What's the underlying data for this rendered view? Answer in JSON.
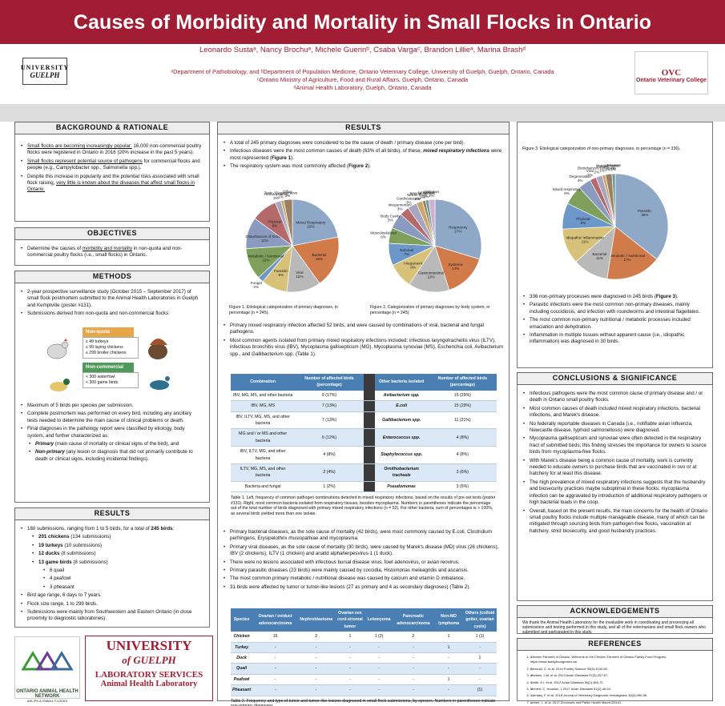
{
  "header": {
    "title": "Causes of Morbidity and Mortality in Small Flocks in Ontario",
    "authors": "Leonardo Sustaᵃ, Nancy Brochuᵃ, Michele Guerinᵇ, Csaba Vargaᶜ, Brandon Lillieᵃ, Marina Brashᵈ",
    "aff1": "ᵃDepartment of Pathobiology, and ᵇDepartment of Population Medicine, Ontario Veterinary College, University of Guelph, Guelph, Ontario, Canada",
    "aff2": "ᶜOntario Ministry of Agriculture, Food and Rural Affairs, Guelph, Ontario, Canada",
    "aff3": "ᵈAnimal Health Laboratory, Guelph, Ontario, Canada",
    "logo_left_1": "UNIVERSITY",
    "logo_left_2": "GUELPH",
    "logo_right_1": "OVC",
    "logo_right_2": "Ontario Veterinary College",
    "brand_color": "#a11d33"
  },
  "background": {
    "heading": "BACKGROUND & RATIONALE",
    "b1a": "Small flocks are becoming increasingly popular:",
    "b1b": " 16,000 non-commercial poultry flocks were registered in Ontario in 2016 (20% increase in the past 5 years).",
    "b2a": "Small flocks represent potential source of pathogens",
    "b2b": " for commercial flocks and people (e.g., Campylobacter spp., Salmonella spp.).",
    "b3a": "Despite this increase in popularity and the potential risks associated with small flock raising, ",
    "b3b": "very little is known about the diseases that affect small flocks in  Ontario."
  },
  "objectives": {
    "heading": "OBJECTIVES",
    "b1a": "Determine the causes of ",
    "b1b": "morbidity and mortality",
    "b1c": " in non-quota and non-commercial poultry flocks (i.e., small flocks)  in Ontario."
  },
  "methods": {
    "heading": "METHODS",
    "b1": "2-year prospective surveillance study (October 2015 – September 2017) of small flock postmortem submitted to the Animal Health Laboratories in Guelph and Kemptville (poster #131).",
    "b2": "Submissions derived from non-quota and non-commercial flocks:",
    "nonquota": "Non-quota",
    "nq1": "≤ 49 turkeys",
    "nq2": "≤ 99 laying chickens",
    "nq3": "≤ 299 broiler chickens",
    "noncomm": "Non-commercial",
    "nc1": "< 300 waterfowl",
    "nc2": "< 300 game birds",
    "b3": "Maximum of 5 birds per species per submission.",
    "b4": "Complete postmortem was performed on every bird, including any ancillary tests needed to determine the main cause of clinical problems or death.",
    "b5": "Final diagnoses in the pathology report were classified by etiology, body system, and further characterized as:",
    "s1a": "Primary",
    "s1b": " (main cause of mortality or clinical signs of the bird), and",
    "s2a": "Non-primary",
    "s2b": " (any lesion or diagnosis that did not primarily contribute to death or clinical signs, including incidental findings)."
  },
  "results_left": {
    "heading": "RESULTS",
    "b1a": "160 submissions, ranging from 1 to 5 birds, for a total of ",
    "b1b": "245 birds",
    "b1c": ":",
    "s1a": "201 chickens",
    "s1b": " (134 submissions)",
    "s2a": "19 turkeys",
    "s2b": " (10 submissions)",
    "s3a": "12 ducks",
    "s3b": " (8 submissions)",
    "s4a": "13 game birds",
    "s4b": " (8 submissions)",
    "t1": "6 quail",
    "t2": "4 peafowl",
    "t3": "3 pheasant",
    "b2": "Bird age range, 6 days to 7 years.",
    "b3": "Flock size range, 1 to 299 birds.",
    "b4": "Submissions were mainly from Southwestern and Eastern Ontario (in close proximity to diagnostic laboratories)."
  },
  "footer": {
    "oahn": "ONTARIO ANIMAL HEALTH NETWORK",
    "ug1": "UNIVERSITY",
    "ug2": "of GUELPH",
    "ug3": "LABORATORY SERVICES",
    "ug4": "Animal Health Laboratory",
    "poster_no": "AHL/PS.A./SMALL FLOCKS"
  },
  "results_mid": {
    "heading": "RESULTS",
    "b1": "A total of 245 primary diagnoses were considered to be the cause of death / primary disease (one per bird).",
    "b2a": "Infectious diseases were the most common causes of death (63% of all birds), of these, ",
    "b2b": "mixed respiratory infections",
    "b2c": " were most represented (",
    "b2d": "Figure 1",
    "b2e": ").",
    "b3a": "The respiratory system was most commonly affected (",
    "b3b": "Figure 2",
    "b3c": ").",
    "fig1": "Figure 1. Etiological categorization of primary diagnoses, in percentage (n = 245).",
    "fig2": "Figure 2. Categorization of primary diagnoses by body system, in percentage (n = 245).",
    "b4": "Primary mixed respiratory infection affected 52 birds, and were caused by combinations of viral, bacterial and fungal pathogens.",
    "b5": "Most common agents isolated from primary mixed respiratory infections included: infectious laryngotracheitis virus (ILTV), infectious bronchitis virus (IBV), Mycoplasma gallisepticum (MG), Mycoplasma synoviae (MS), Escherichia coli, Avibacterium spp., and Gallibacterium spp. (Table 1).",
    "table1": {
      "h1": "Combination",
      "h2": "Number of affected birds (percentage)",
      "h3": "Other bacteria isolated",
      "h4": "Number of affected birds (percentage)",
      "rows": [
        [
          "IBV, MG, MS, and other bacteria",
          "9 (17%)",
          "Avibacterium spp.",
          "15 (29%)"
        ],
        [
          "IBV, MG, MS",
          "7 (13%)",
          "E.coli",
          "15 (29%)"
        ],
        [
          "IBV, ILTV, MG, MS, and other bacteria",
          "7 (13%)",
          "Gallibacterium spp.",
          "11 (21%)"
        ],
        [
          "MG and / or MS and other bacteria",
          "6 (12%)",
          "Enterococcus spp.",
          "4 (8%)"
        ],
        [
          "IBV, ILTV, MG, and other bacteria",
          "4 (8%)",
          "Staphylococcus spp.",
          "4 (8%)"
        ],
        [
          "ILTV, MG, MS, and other bacteria",
          "2 (4%)",
          "Ornithobacterium tracheale",
          "3 (6%)"
        ],
        [
          "Bacteria and fungal",
          "1 (2%)",
          "Pseudomonas",
          "3 (6%)"
        ]
      ],
      "caption": "Table 1. Left, frequency of common pathogen combinations detected in mixed respiratory infections, based on the results of pre-set tests (poster #131). Right, most common bacteria isolated from respiratory tissues, besides mycoplasma. Numbers in parentheses indicate the percentage out of the total number of birds diagnosed with primary mixed respiratory infections (n = 52). For other bacteria, sum of percentages is > 100%, as several birds yielded more than one isolate."
    },
    "b6": "Primary bacterial diseases, as the sole cause of mortality (42 birds), were most commonly caused by E.coli, Clostridium perfringens,  Erysipelothrix rhusiopathiae and mycoplasma.",
    "b7": "Primary viral diseases, as the sole cause of mortality (30 birds), were caused by Marek's disease (MD) virus (26 chickens),  IBV (2 chickens), ILTV (1 chicken) and anatid alphaherpesvirus-1 (1 duck).",
    "b8": "There were no lesions associated with infectious bursal disease virus, fowl adenovirus, or avian reovirus.",
    "b9": "Primary parasitic diseases (23 birds) were mainly caused by coccidia, Histomonas meleagridis and ascarisis.",
    "b10": "The most common primary metabolic / nutritional disease was caused by calcium and vitamin D imbalance.",
    "b11": "31 birds were affected by tumor or tumor-like lesions (27 as primary and 4 as secondary diagnoses) (Table 2).",
    "table2": {
      "headers": [
        "Species",
        "Ovarian / oviduct adenocarcinoma",
        "Nephroblastoma",
        "Ovarian sex cord-stromal tumor",
        "Leiomyoma",
        "Pancreatic adenocarcinoma",
        "Non-MD lymphoma",
        "Others (colloid goiter, ovarian cysts)"
      ],
      "rows": [
        [
          "Chicken",
          "16",
          "2",
          "1",
          "1 (2)",
          "2",
          "1",
          "1 (1)"
        ],
        [
          "Turkey",
          "-",
          "-",
          "-",
          "-",
          "-",
          "1",
          "-"
        ],
        [
          "Duck",
          "-",
          "-",
          "-",
          "-",
          "-",
          "-",
          "1"
        ],
        [
          "Quail",
          "-",
          "-",
          "-",
          "-",
          "-",
          "-",
          "-"
        ],
        [
          "Peafowl",
          "-",
          "-",
          "-",
          "-",
          "-",
          "1",
          "-"
        ],
        [
          "Pheasant",
          "-",
          "-",
          "-",
          "-",
          "-",
          "-",
          "(1)"
        ]
      ],
      "caption": "Table 2. Frequency and type of tumor and tumor-like lesions diagnosed in small flock submissions, by species. Numbers in parentheses indicate non-primary diagnoses."
    }
  },
  "results_right": {
    "fig3": "Figure 3. Etiological categorization of non-primary diagnoses, in percentage (n = 336).",
    "b1a": "336 non-primary processes were diagnosed in 245 birds (",
    "b1b": "Figure 3",
    "b1c": ").",
    "b2": "Parasitic infections were the most common non-primary diseases, mainly including coccidiosis, and infection with roundworms and intestinal flagellates.",
    "b3": "The most common non-primary nutritional / metabolic processes included emaciation and dehydration.",
    "b4": "Inflammation in multiple tissues without apparent cause (i.e., idiopathic inflammation) was diagnosed in 30 birds."
  },
  "conclusions": {
    "heading": "CONCLUSIONS & SIGNIFICANCE",
    "b1": "Infectious pathogens were the most common cause of primary disease and / or death in Ontario small poultry flocks.",
    "b2": "Most common causes of death included mixed respiratory infections, bacterial infections, and Marek's disease.",
    "b3": "No federally reportable diseases in Canada (i.e., notifiable avian influenza, Newcastle disease, typhoid salmonellosis) were diagnosed.",
    "b4": "Mycoplasma gallisepticum and synoviae were often detected in the respiratory tract of submitted birds; this finding stresses the importance for owners to source birds from mycoplasma-free flocks.",
    "b5": "With Marek's disease being a common cause of mortality, work is currently needed to educate owners to purchase birds that are vaccinated in ovo or at hatchery for at least this disease.",
    "b6": "The high prevalence of mixed respiratory infections suggests that the husbandry and biosecurity practices maybe suboptimal in these flocks: mycoplasma infection can be aggravated by introduction of additional respiratory pathogens or high bacterial loads in the coop.",
    "b7": "Overall, based on the present results, the main concerns for the health of Ontario small poultry flocks include multiple manageable disease, many of which can be mitigated through sourcing birds from pathogen-free flocks, vaccination at hatchery, strict biosecurity, and good husbandry practices."
  },
  "ack": {
    "heading": "ACKNOWLEDGEMENTS",
    "text": "We thank the Animal Health Laboratory for the invaluable work in coordinating and processing all submissions and testing performed in this study, and all of the veterinarians and small flock owners who submitted and participated in this study."
  },
  "refs": {
    "heading": "REFERENCES",
    "items": [
      "Chicken Farmers of Ontario, Welcome to the Chicken Farmers of Ontario Family Food Program, https://www.familyfoodgrower.ca/.",
      "Elbrouid, C. et al. 2014 Poultry Science 93(5):1043-55.",
      "Madsen, J.M. et al. 2013 Avian Diseases 57(2):257-67.",
      "Smith, E.I. et al. 2012 Avian Diseases 56(2):365-72.",
      "Mehlerl, C, Houston, L 2017 Avian Diseases 61(1):46-54.",
      "Carnaby, F. et al. 2018 Journal of Veterinary Diagnostic Investigation 30(4):490-96.",
      "Lebert, L. et al. 2017 Zoonoses and Public Health March:254-61.",
      "Madsen, J.M. et al. 2013 Avian Diseases 57(3):597-94."
    ]
  },
  "chart_data": [
    {
      "type": "pie",
      "title": "Figure 1",
      "categories": [
        "Mixed Respiratory",
        "Bacterial",
        "Viral",
        "Parasitic",
        "Fungal",
        "Metabolic / Nutritional",
        "Disturbances of Growth",
        "Physical",
        "Hemodynamic",
        "Toxic / Degenerative",
        "Other"
      ],
      "values": [
        22,
        18,
        12,
        9,
        2,
        11,
        11,
        9,
        2,
        1,
        3
      ],
      "colors": [
        "#8fa8c8",
        "#d17a4a",
        "#b9b9b9",
        "#d8c27a",
        "#6d97c9",
        "#7fa05a",
        "#8b9bc0",
        "#b46a6a",
        "#a6a6c0",
        "#c9a66b",
        "#9a8060"
      ]
    },
    {
      "type": "pie",
      "title": "Figure 2",
      "categories": [
        "Respiratory",
        "Systemic",
        "Gastrointestinal",
        "Integument",
        "Nervous",
        "Musculoskeletal",
        "Body Cavity",
        "Integumentary",
        "Cardiovascular",
        "Whole Body",
        "Special Senses",
        "Lymphoid",
        "Unknown"
      ],
      "values": [
        27,
        14,
        13,
        8,
        7,
        5,
        5,
        3,
        3,
        2,
        1,
        1,
        2
      ],
      "colors": [
        "#8fa8c8",
        "#d17a4a",
        "#b9b9b9",
        "#d8c27a",
        "#6d97c9",
        "#7fa05a",
        "#8b9bc0",
        "#b46a6a",
        "#a6a6c0",
        "#c9a66b",
        "#9a8060",
        "#6a9a9a",
        "#d0b0d0"
      ]
    },
    {
      "type": "pie",
      "title": "Figure 3",
      "categories": [
        "Parasitic",
        "Metabolic / Nutritional",
        "Bacterial",
        "Idiopathic Inflammation",
        "Physical",
        "Mixed respiratory",
        "Degenerative",
        "Viral",
        "Disturbances of Growth",
        "Fungal",
        "Hemodynamic",
        "Unknown"
      ],
      "values": [
        36,
        17,
        11,
        11,
        8,
        6,
        4,
        2,
        2,
        1,
        2,
        1
      ],
      "colors": [
        "#8fa8c8",
        "#d17a4a",
        "#b9b9b9",
        "#d8c27a",
        "#6d97c9",
        "#7fa05a",
        "#8b9bc0",
        "#b46a6a",
        "#a6a6c0",
        "#c9a66b",
        "#9a8060",
        "#6a9a9a"
      ]
    }
  ]
}
